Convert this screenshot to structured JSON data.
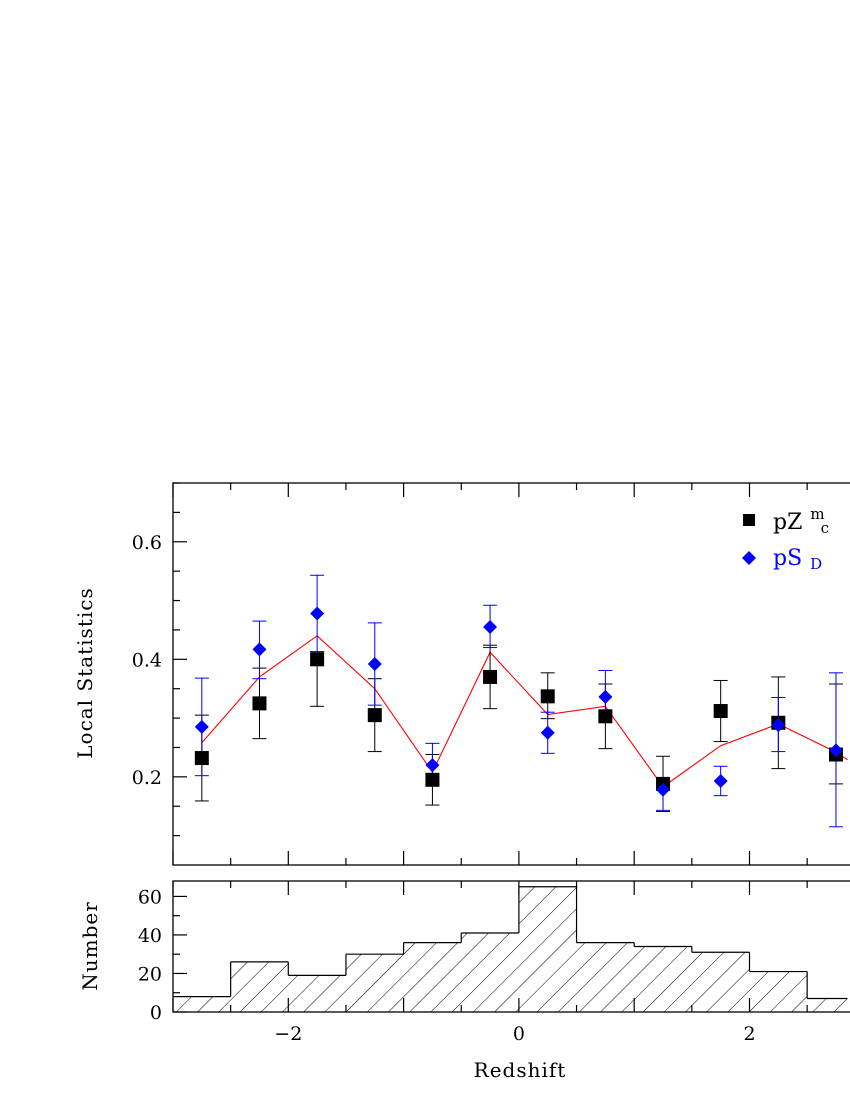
{
  "chart_data": [
    {
      "type": "scatter",
      "xlabel": "",
      "ylabel": "Local Statistics",
      "xlim": [
        -3,
        2.85
      ],
      "ylim": [
        0.05,
        0.7
      ],
      "x_ticks": [
        "-2",
        "0",
        "2"
      ],
      "y_ticks": [
        "0.2",
        "0.4",
        "0.6"
      ],
      "legend_placement": "top-right",
      "series": [
        {
          "name": "pZ",
          "superscript": "m",
          "subscript": "c",
          "marker": "square",
          "color": "#000000",
          "x": [
            -2.75,
            -2.25,
            -1.75,
            -1.25,
            -0.75,
            -0.25,
            0.25,
            0.75,
            1.25,
            1.75,
            2.25,
            2.75
          ],
          "y": [
            0.232,
            0.325,
            0.4,
            0.305,
            0.195,
            0.37,
            0.337,
            0.303,
            0.188,
            0.312,
            0.292,
            0.238
          ],
          "err_low": [
            0.073,
            0.06,
            0.08,
            0.062,
            0.043,
            0.054,
            0.038,
            0.055,
            0.047,
            0.052,
            0.078,
            0.05
          ],
          "err_high": [
            0.073,
            0.06,
            0.013,
            0.062,
            0.043,
            0.054,
            0.04,
            0.055,
            0.047,
            0.052,
            0.078,
            0.12
          ]
        },
        {
          "name": "pS",
          "subscript": "D",
          "marker": "diamond",
          "color": "#0000ff",
          "x": [
            -2.75,
            -2.25,
            -1.75,
            -1.25,
            -0.75,
            -0.25,
            0.25,
            0.75,
            1.25,
            1.75,
            2.25,
            2.75
          ],
          "y": [
            0.285,
            0.417,
            0.478,
            0.392,
            0.22,
            0.455,
            0.275,
            0.336,
            0.178,
            0.193,
            0.288,
            0.245
          ],
          "err_low": [
            0.083,
            0.05,
            0.065,
            0.07,
            0.035,
            0.035,
            0.035,
            0.038,
            0.035,
            0.025,
            0.045,
            0.13
          ],
          "err_high": [
            0.083,
            0.048,
            0.065,
            0.07,
            0.037,
            0.037,
            0.035,
            0.045,
            0.02,
            0.025,
            0.047,
            0.132
          ]
        },
        {
          "marker": "line",
          "color": "#ff0000",
          "x": [
            -2.75,
            -2.25,
            -1.75,
            -1.25,
            -0.75,
            -0.25,
            0.25,
            0.75,
            1.25,
            1.75,
            2.25,
            2.75,
            2.85
          ],
          "y": [
            0.258,
            0.37,
            0.44,
            0.35,
            0.208,
            0.412,
            0.306,
            0.32,
            0.183,
            0.253,
            0.29,
            0.242,
            0.229
          ]
        }
      ]
    },
    {
      "type": "bar",
      "style": "hatched-step-histogram",
      "xlabel": "Redshift",
      "ylabel": "Number",
      "xlim": [
        -3,
        2.85
      ],
      "ylim": [
        0,
        68
      ],
      "x_ticks": [
        "-2",
        "0",
        "2"
      ],
      "y_ticks": [
        "0",
        "20",
        "40",
        "60"
      ],
      "bin_edges": [
        -3,
        -2.5,
        -2,
        -1.5,
        -1,
        -0.5,
        0,
        0.5,
        1,
        1.5,
        2,
        2.5,
        2.85
      ],
      "values": [
        8,
        26,
        19,
        30,
        36,
        41,
        65,
        36,
        34,
        31,
        21,
        7
      ]
    }
  ]
}
